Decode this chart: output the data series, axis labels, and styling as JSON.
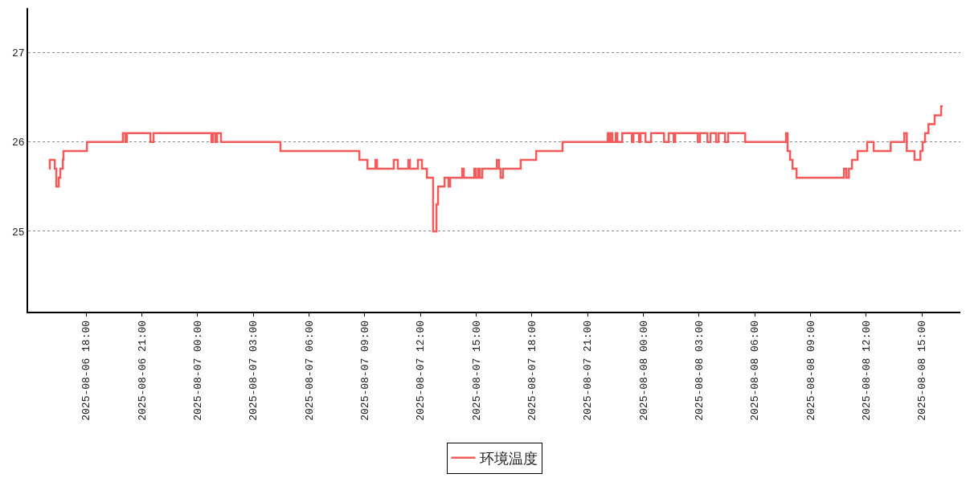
{
  "chart_data": {
    "type": "step",
    "x": [
      "2025-08-06T16:01",
      "2025-08-06T16:03",
      "2025-08-06T16:19",
      "2025-08-06T16:24",
      "2025-08-06T16:32",
      "2025-08-06T16:37",
      "2025-08-06T16:45",
      "2025-08-06T16:47",
      "2025-08-06T18:03",
      "2025-08-06T19:59",
      "2025-08-06T20:07",
      "2025-08-06T20:12",
      "2025-08-06T21:28",
      "2025-08-06T21:38",
      "2025-08-07T00:45",
      "2025-08-07T00:50",
      "2025-08-07T00:58",
      "2025-08-07T01:03",
      "2025-08-07T01:16",
      "2025-08-07T04:28",
      "2025-08-07T08:43",
      "2025-08-07T09:09",
      "2025-08-07T09:35",
      "2025-08-07T09:40",
      "2025-08-07T10:34",
      "2025-08-07T10:47",
      "2025-08-07T11:21",
      "2025-08-07T11:26",
      "2025-08-07T11:52",
      "2025-08-07T12:05",
      "2025-08-07T12:21",
      "2025-08-07T12:41",
      "2025-08-07T12:52",
      "2025-08-07T12:57",
      "2025-08-07T13:18",
      "2025-08-07T13:31",
      "2025-08-07T13:36",
      "2025-08-07T14:15",
      "2025-08-07T14:20",
      "2025-08-07T14:54",
      "2025-08-07T14:59",
      "2025-08-07T15:07",
      "2025-08-07T15:12",
      "2025-08-07T15:20",
      "2025-08-07T16:07",
      "2025-08-07T16:14",
      "2025-08-07T16:19",
      "2025-08-07T16:27",
      "2025-08-07T17:24",
      "2025-08-07T18:14",
      "2025-08-07T19:39",
      "2025-08-07T22:05",
      "2025-08-07T22:10",
      "2025-08-07T22:15",
      "2025-08-07T22:20",
      "2025-08-07T22:31",
      "2025-08-07T22:36",
      "2025-08-07T22:52",
      "2025-08-07T23:23",
      "2025-08-07T23:28",
      "2025-08-07T23:46",
      "2025-08-07T23:51",
      "2025-08-08T00:07",
      "2025-08-08T00:25",
      "2025-08-08T01:07",
      "2025-08-08T01:22",
      "2025-08-08T01:38",
      "2025-08-08T01:43",
      "2025-08-08T02:56",
      "2025-08-08T03:03",
      "2025-08-08T03:27",
      "2025-08-08T03:37",
      "2025-08-08T03:55",
      "2025-08-08T04:03",
      "2025-08-08T04:24",
      "2025-08-08T04:34",
      "2025-08-08T05:29",
      "2025-08-08T07:41",
      "2025-08-08T07:46",
      "2025-08-08T07:54",
      "2025-08-08T08:02",
      "2025-08-08T08:15",
      "2025-08-08T10:48",
      "2025-08-08T10:56",
      "2025-08-08T11:04",
      "2025-08-08T11:14",
      "2025-08-08T11:32",
      "2025-08-08T12:03",
      "2025-08-08T12:24",
      "2025-08-08T13:19",
      "2025-08-08T14:03",
      "2025-08-08T14:11",
      "2025-08-08T14:36",
      "2025-08-08T14:55",
      "2025-08-08T15:02",
      "2025-08-08T15:10",
      "2025-08-08T15:21",
      "2025-08-08T15:41",
      "2025-08-08T16:02",
      "2025-08-08T16:07"
    ],
    "series": [
      {
        "name": "环境温度",
        "color": "#f55a5a",
        "values": [
          25.7,
          25.8,
          25.7,
          25.5,
          25.6,
          25.7,
          25.8,
          25.9,
          26.0,
          26.1,
          26.0,
          26.1,
          26.0,
          26.1,
          26.0,
          26.1,
          26.0,
          26.1,
          26.0,
          25.9,
          25.8,
          25.7,
          25.8,
          25.7,
          25.8,
          25.7,
          25.8,
          25.7,
          25.8,
          25.7,
          25.6,
          25.0,
          25.3,
          25.5,
          25.6,
          25.5,
          25.6,
          25.7,
          25.6,
          25.7,
          25.6,
          25.7,
          25.6,
          25.7,
          25.8,
          25.7,
          25.6,
          25.7,
          25.8,
          25.9,
          26.0,
          26.1,
          26.0,
          26.1,
          26.0,
          26.1,
          26.0,
          26.1,
          26.0,
          26.1,
          26.0,
          26.1,
          26.0,
          26.1,
          26.0,
          26.1,
          26.0,
          26.1,
          26.0,
          26.1,
          26.0,
          26.1,
          26.0,
          26.1,
          26.0,
          26.1,
          26.0,
          26.1,
          25.9,
          25.8,
          25.7,
          25.6,
          25.7,
          25.6,
          25.7,
          25.8,
          25.9,
          26.0,
          25.9,
          26.0,
          26.1,
          25.9,
          25.8,
          25.9,
          26.0,
          26.1,
          26.2,
          26.3,
          26.4,
          26.4
        ]
      }
    ],
    "xlim": [
      "2025-08-06T14:53",
      "2025-08-08T17:04"
    ],
    "xticks": [
      {
        "value": "2025-08-06T18:00",
        "label": "2025-08-06 18:00"
      },
      {
        "value": "2025-08-06T21:00",
        "label": "2025-08-06 21:00"
      },
      {
        "value": "2025-08-07T00:00",
        "label": "2025-08-07 00:00"
      },
      {
        "value": "2025-08-07T03:00",
        "label": "2025-08-07 03:00"
      },
      {
        "value": "2025-08-07T06:00",
        "label": "2025-08-07 06:00"
      },
      {
        "value": "2025-08-07T09:00",
        "label": "2025-08-07 09:00"
      },
      {
        "value": "2025-08-07T12:00",
        "label": "2025-08-07 12:00"
      },
      {
        "value": "2025-08-07T15:00",
        "label": "2025-08-07 15:00"
      },
      {
        "value": "2025-08-07T18:00",
        "label": "2025-08-07 18:00"
      },
      {
        "value": "2025-08-07T21:00",
        "label": "2025-08-07 21:00"
      },
      {
        "value": "2025-08-08T00:00",
        "label": "2025-08-08 00:00"
      },
      {
        "value": "2025-08-08T03:00",
        "label": "2025-08-08 03:00"
      },
      {
        "value": "2025-08-08T06:00",
        "label": "2025-08-08 06:00"
      },
      {
        "value": "2025-08-08T09:00",
        "label": "2025-08-08 09:00"
      },
      {
        "value": "2025-08-08T12:00",
        "label": "2025-08-08 12:00"
      },
      {
        "value": "2025-08-08T15:00",
        "label": "2025-08-08 15:00"
      }
    ],
    "ylim": [
      24.1,
      27.5
    ],
    "yticks": [
      25,
      26,
      27
    ],
    "grid": "y",
    "legend": "bottom",
    "line_style": "solid",
    "marker": "none"
  }
}
